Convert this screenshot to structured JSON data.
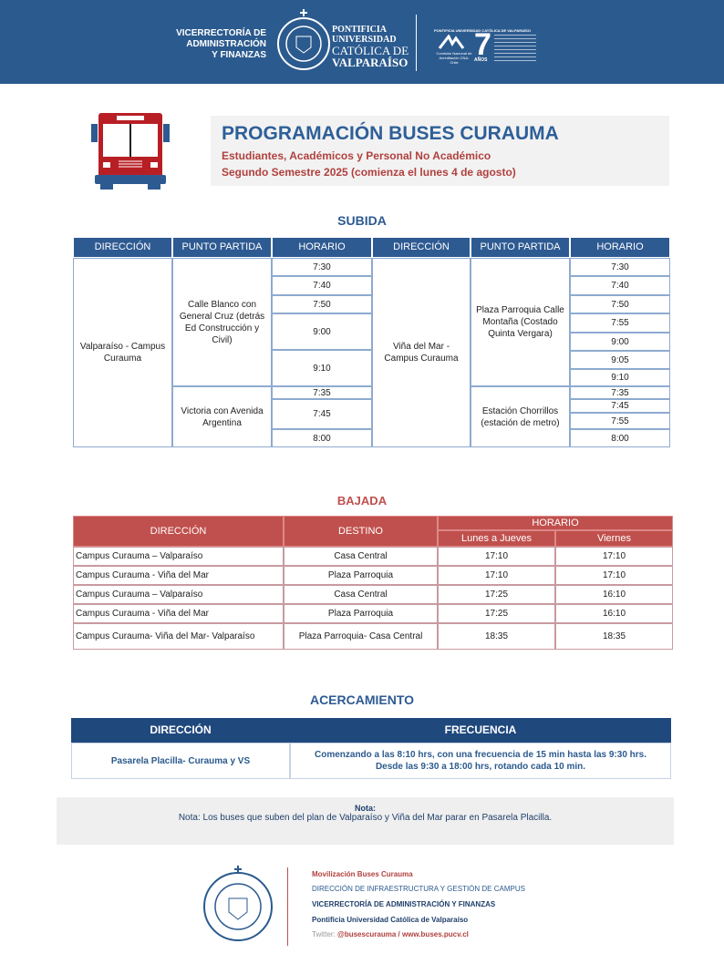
{
  "header": {
    "vice": [
      "VICERRECTORÍA DE",
      "ADMINISTRACIÓN",
      "Y FINANZAS"
    ],
    "university": [
      "PONTIFICIA",
      "UNIVERSIDAD",
      "CATÓLICA DE",
      "VALPARAÍSO"
    ],
    "accreditation_title": "PONTIFICIA UNIVERSIDAD CATÓLICA DE VALPARAÍSO",
    "accreditation_years": "7",
    "accreditation_unit": "AÑOS",
    "cna": "Comisión Nacional de Acreditación CNA-Chile"
  },
  "title": {
    "main": "PROGRAMACIÓN BUSES CURAUMA",
    "sub1": "Estudiantes, Académicos y Personal No Académico",
    "sub2": "Segundo Semestre 2025  (comienza el lunes 4 de agosto)"
  },
  "subida": {
    "title": "SUBIDA",
    "headers": [
      "DIRECCIÓN",
      "PUNTO PARTIDA",
      "HORARIO",
      "DIRECCIÓN",
      "PUNTO PARTIDA",
      "HORARIO"
    ],
    "left": {
      "direction": "Valparaíso - Campus Curauma",
      "points": [
        {
          "name": "Calle Blanco con General Cruz (detrás Ed Construcción y Civil)",
          "times": [
            "7:30",
            "7:40",
            "7:50",
            "9:00",
            "9:10"
          ]
        },
        {
          "name": "Victoria con Avenida Argentina",
          "times": [
            "7:35",
            "7:45",
            "8:00"
          ]
        }
      ]
    },
    "right": {
      "direction": "Viña del Mar - Campus Curauma",
      "points": [
        {
          "name": "Plaza Parroquia Calle Montaña (Costado Quinta Vergara)",
          "times": [
            "7:30",
            "7:40",
            "7:50",
            "7:55",
            "9:00",
            "9:05",
            "9:10"
          ]
        },
        {
          "name": "Estación Chorrillos (estación de metro)",
          "times": [
            "7:35",
            "7:45",
            "7:55",
            "8:00"
          ]
        }
      ]
    }
  },
  "bajada": {
    "title": "BAJADA",
    "headers": {
      "direction": "DIRECCIÓN",
      "destination": "DESTINO",
      "schedule": "HORARIO",
      "mon_thu": "Lunes a Jueves",
      "fri": "Viernes"
    },
    "rows": [
      [
        "Campus Curauma – Valparaíso",
        "Casa Central",
        "17:10",
        "17:10"
      ],
      [
        "Campus Curauma - Viña del Mar",
        "Plaza Parroquia",
        "17:10",
        "17:10"
      ],
      [
        "Campus Curauma – Valparaíso",
        "Casa Central",
        "17:25",
        "16:10"
      ],
      [
        "Campus Curauma - Viña del Mar",
        "Plaza Parroquia",
        "17:25",
        "16:10"
      ],
      [
        "Campus Curauma- Viña del Mar- Valparaíso",
        "Plaza Parroquia- Casa Central",
        "18:35",
        "18:35"
      ]
    ]
  },
  "acercamiento": {
    "title": "ACERCAMIENTO",
    "headers": [
      "DIRECCIÓN",
      "FRECUENCIA"
    ],
    "direction": "Pasarela Placilla- Curauma  y VS",
    "frequency1": "Comenzando  a las 8:10 hrs,  con una  frecuencia  de 15 min hasta las 9:30 hrs.",
    "frequency2": "Desde las 9:30 a 18:00 hrs, rotando  cada 10 min."
  },
  "note": {
    "label": "Nota:",
    "text": "Nota: Los buses que suben del plan de Valparaíso y Viña del Mar parar en Pasarela Placilla."
  },
  "footer": {
    "line1": "Movilización  Buses Curauma",
    "line2": "DIRECCIÓN  DE INFRAESTRUCTURA   Y GESTIÓN  DE CAMPUS",
    "line3": "VICERRECTORÍA   DE  ADMINISTRACIÓN   Y  FINANZAS",
    "line4": "Pontificia  Universidad  Católica  de  Valparaíso",
    "twitter_label": "Twitter:",
    "twitter": "@busescurauma  /  www.buses.pucv.cl"
  },
  "colors": {
    "blue": "#2b5a8e",
    "red": "#c0504d",
    "title_blue": "#2e5f98",
    "subtitle_red": "#b0413e"
  }
}
